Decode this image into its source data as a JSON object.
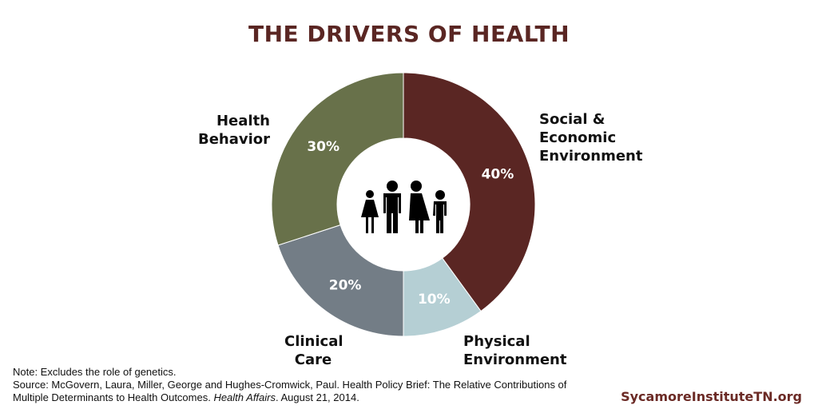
{
  "chart_data": {
    "type": "pie",
    "title": "THE DRIVERS OF HEALTH",
    "donut": true,
    "center_icon": "family-icon",
    "slices": [
      {
        "label": "Social & Economic Environment",
        "value": 40,
        "value_label": "40%",
        "color": "#5a2623"
      },
      {
        "label": "Physical Environment",
        "value": 10,
        "value_label": "10%",
        "color": "#b5cfd4"
      },
      {
        "label": "Clinical Care",
        "value": 20,
        "value_label": "20%",
        "color": "#737d86"
      },
      {
        "label": "Health Behavior",
        "value": 30,
        "value_label": "30%",
        "color": "#68714a"
      }
    ]
  },
  "labels": {
    "social": [
      "Social &",
      "Economic",
      "Environment"
    ],
    "physical": [
      "Physical",
      "Environment"
    ],
    "clinical": [
      "Clinical",
      "Care"
    ],
    "behavior": [
      "Health",
      "Behavior"
    ]
  },
  "footer": {
    "note": "Note: Excludes the role of genetics.",
    "source_1": "Source: McGovern, Laura, Miller, George and Hughes-Cromwick, Paul. Health Policy Brief: The Relative Contributions of",
    "source_2a": "Multiple Determinants to Health Outcomes. ",
    "source_2b": "Health Affairs",
    "source_2c": ". August 21, 2014.",
    "brand": "SycamoreInstituteTN.org"
  }
}
